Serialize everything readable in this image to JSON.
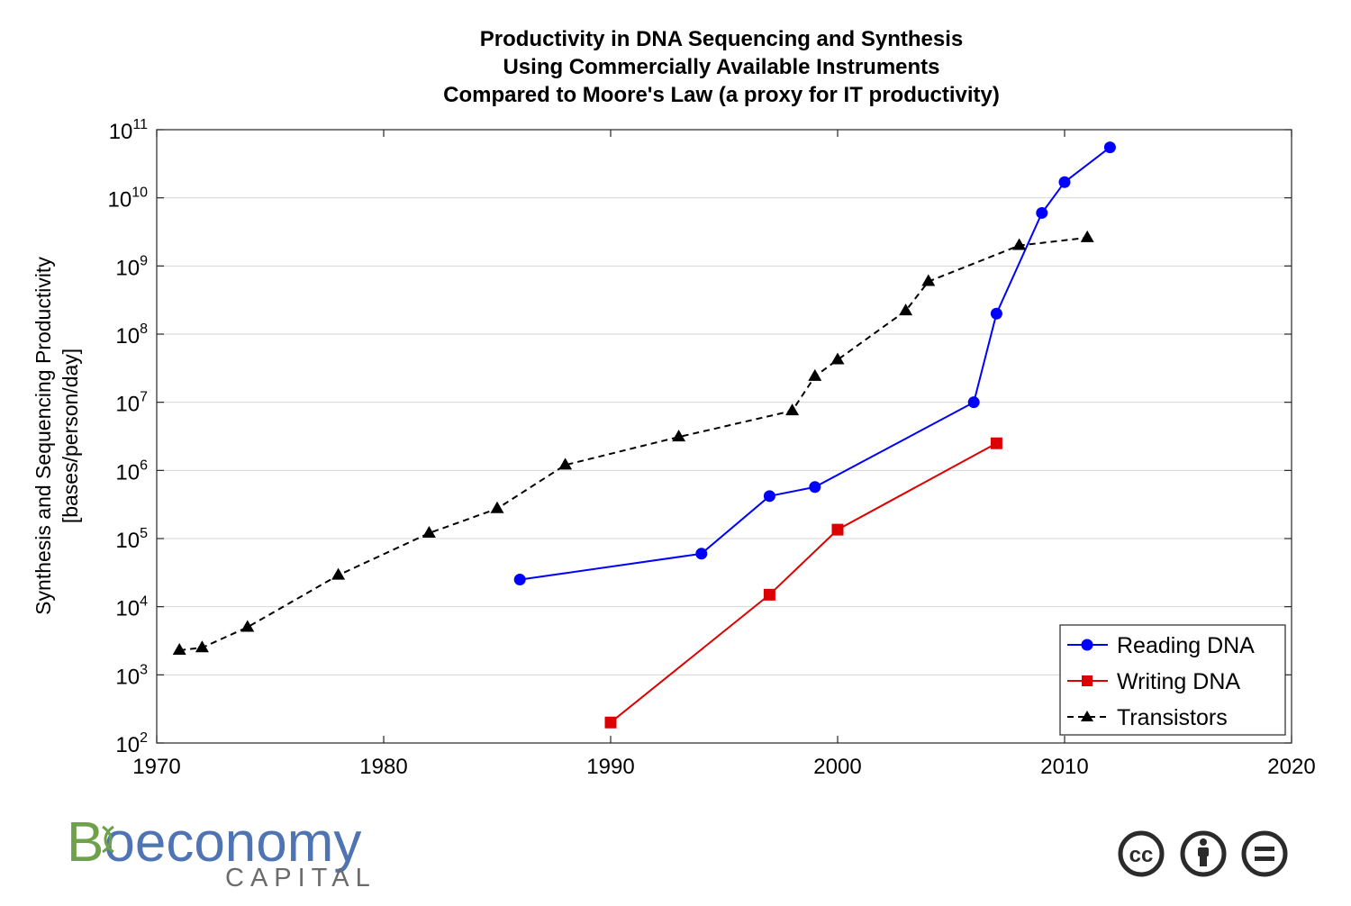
{
  "chart_data": {
    "type": "line",
    "title": [
      "Productivity in DNA Sequencing and Synthesis",
      "Using Commercially Available Instruments",
      "Compared to Moore's Law (a proxy for IT productivity)"
    ],
    "ylabel": [
      "Synthesis and Sequencing Productivity",
      "[bases/person/day]"
    ],
    "xlabel": "",
    "xlim": [
      1970,
      2020
    ],
    "ylim": [
      100,
      100000000000
    ],
    "y_scale": "log",
    "x_ticks": [
      "1970",
      "1980",
      "1990",
      "2000",
      "2010",
      "2020"
    ],
    "y_ticks": [
      {
        "base": "10",
        "exp": "2"
      },
      {
        "base": "10",
        "exp": "3"
      },
      {
        "base": "10",
        "exp": "4"
      },
      {
        "base": "10",
        "exp": "5"
      },
      {
        "base": "10",
        "exp": "6"
      },
      {
        "base": "10",
        "exp": "7"
      },
      {
        "base": "10",
        "exp": "8"
      },
      {
        "base": "10",
        "exp": "9"
      },
      {
        "base": "10",
        "exp": "10"
      },
      {
        "base": "10",
        "exp": "11"
      }
    ],
    "grid": "horizontal",
    "legend_position": "bottom-right",
    "series": [
      {
        "name": "Reading DNA",
        "color": "#0000ff",
        "marker": "circle",
        "line": "solid",
        "points": [
          {
            "x": 1986,
            "y": 25000
          },
          {
            "x": 1994,
            "y": 60000
          },
          {
            "x": 1997,
            "y": 420000
          },
          {
            "x": 1999,
            "y": 570000
          },
          {
            "x": 2006,
            "y": 10000000
          },
          {
            "x": 2007,
            "y": 200000000
          },
          {
            "x": 2009,
            "y": 6000000000
          },
          {
            "x": 2010,
            "y": 17000000000
          },
          {
            "x": 2012,
            "y": 55000000000
          }
        ]
      },
      {
        "name": "Writing DNA",
        "color": "#dd0000",
        "marker": "square",
        "line": "solid",
        "points": [
          {
            "x": 1990,
            "y": 200
          },
          {
            "x": 1997,
            "y": 15000
          },
          {
            "x": 2000,
            "y": 135000
          },
          {
            "x": 2007,
            "y": 2500000
          }
        ]
      },
      {
        "name": "Transistors",
        "color": "#000000",
        "marker": "triangle",
        "line": "dashed",
        "points": [
          {
            "x": 1971,
            "y": 2300
          },
          {
            "x": 1972,
            "y": 2500
          },
          {
            "x": 1974,
            "y": 5000
          },
          {
            "x": 1978,
            "y": 29000
          },
          {
            "x": 1982,
            "y": 120000
          },
          {
            "x": 1985,
            "y": 275000
          },
          {
            "x": 1988,
            "y": 1200000
          },
          {
            "x": 1993,
            "y": 3100000
          },
          {
            "x": 1998,
            "y": 7500000
          },
          {
            "x": 1999,
            "y": 24000000
          },
          {
            "x": 2000,
            "y": 42000000
          },
          {
            "x": 2003,
            "y": 220000000
          },
          {
            "x": 2004,
            "y": 592000000
          },
          {
            "x": 2008,
            "y": 2000000000
          },
          {
            "x": 2011,
            "y": 2600000000
          }
        ]
      }
    ]
  },
  "branding": {
    "logo_text_b": "B",
    "logo_text_rest": "oeconomy",
    "logo_subtitle": "CAPITAL",
    "green": "#6fa04a",
    "blue": "#4f74b3"
  },
  "license": {
    "cc_text": "cc",
    "icons": [
      "cc-icon",
      "attribution-icon",
      "no-derivatives-icon"
    ]
  }
}
